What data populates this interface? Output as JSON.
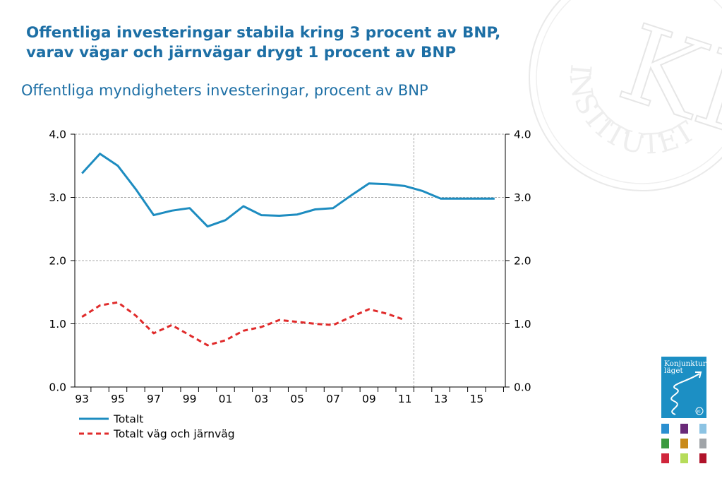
{
  "slide": {
    "title_lines": [
      "Offentliga investeringar stabila kring 3 procent av BNP,",
      "varav vägar och järnvägar drygt 1 procent av BNP"
    ]
  },
  "brand": {
    "watermark_letters": "KI",
    "watermark_ring": "INSTITUTET",
    "report_title_line1": "Konjunktur",
    "report_title_line2": "läget",
    "cover_badge": "KI",
    "cover_color": "#1c8fc4",
    "cover_grid_colors": [
      "#2b8fd0",
      "#6a2a78",
      "#8cc3e3",
      "#3b9a3e",
      "#c98a1a",
      "#a0a4a8",
      "#d0263c",
      "#b6dc5a",
      "#b0132a"
    ]
  },
  "chart_data": {
    "type": "line",
    "title": "",
    "subtitle": "Offentliga myndigheters investeringar, procent av BNP",
    "xlabel": "",
    "ylabel": "",
    "x": [
      1993,
      1994,
      1995,
      1996,
      1997,
      1998,
      1999,
      2000,
      2001,
      2002,
      2003,
      2004,
      2005,
      2006,
      2007,
      2008,
      2009,
      2010,
      2011,
      2012,
      2013,
      2014,
      2015,
      2016
    ],
    "xlim": [
      1992.6,
      2016.6
    ],
    "ylim": [
      0,
      4
    ],
    "y_ticks": [
      0,
      1,
      2,
      3,
      4
    ],
    "y_tick_labels": [
      "0.0",
      "1.0",
      "2.0",
      "3.0",
      "4.0"
    ],
    "x_tick_values": [
      1993,
      1995,
      1997,
      1999,
      2001,
      2003,
      2005,
      2007,
      2009,
      2011,
      2013,
      2015
    ],
    "x_tick_labels": [
      "93",
      "95",
      "97",
      "99",
      "01",
      "03",
      "05",
      "07",
      "09",
      "11",
      "13",
      "15"
    ],
    "forecast_start": 2011.5,
    "grid": true,
    "legend_position": "bottom-left",
    "series": [
      {
        "name": "Totalt",
        "color": "#1d8cc0",
        "style": "solid",
        "values": [
          3.38,
          3.69,
          3.5,
          3.13,
          2.72,
          2.79,
          2.83,
          2.54,
          2.64,
          2.86,
          2.72,
          2.71,
          2.73,
          2.81,
          2.83,
          3.03,
          3.22,
          3.21,
          3.18,
          3.1,
          2.98,
          2.98,
          2.98,
          2.98
        ]
      },
      {
        "name": "Totalt väg och järnväg",
        "color": "#e02b2b",
        "style": "dashed",
        "values": [
          1.11,
          1.29,
          1.34,
          1.13,
          0.85,
          0.98,
          0.82,
          0.66,
          0.74,
          0.89,
          0.95,
          1.06,
          1.03,
          1.0,
          0.98,
          1.11,
          1.23,
          1.16,
          1.06,
          null,
          null,
          null,
          null,
          null
        ]
      }
    ]
  }
}
